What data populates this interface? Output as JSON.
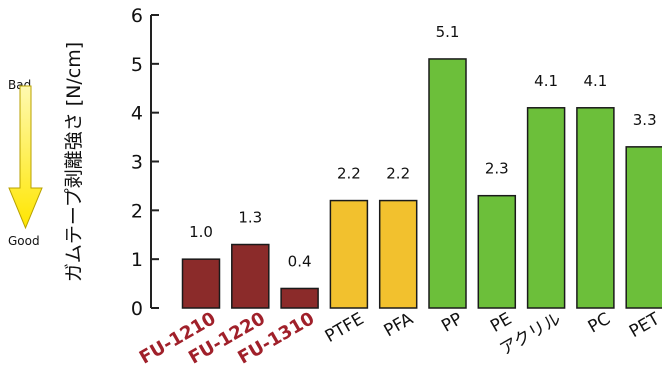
{
  "chart_data": {
    "type": "bar",
    "title": "",
    "xlabel": "",
    "ylabel": "ガムテープ剥離強さ [N/cm]",
    "ylim": [
      0,
      6
    ],
    "yticks": [
      "0",
      "1",
      "2",
      "3",
      "4",
      "5",
      "6"
    ],
    "grid": false,
    "categories": [
      "FU-1210",
      "FU-1220",
      "FU-1310",
      "PTFE",
      "PFA",
      "PP",
      "PE",
      "アクリル",
      "PC",
      "PET"
    ],
    "values": [
      1.0,
      1.3,
      0.4,
      2.2,
      2.2,
      5.1,
      2.3,
      4.1,
      4.1,
      3.3
    ],
    "value_labels": [
      "1.0",
      "1.3",
      "0.4",
      "2.2",
      "2.2",
      "5.1",
      "2.3",
      "4.1",
      "4.1",
      "3.3"
    ],
    "bar_colors": [
      "#8b2b2a",
      "#8b2b2a",
      "#8b2b2a",
      "#f2c12e",
      "#f2c12e",
      "#6cbf3a",
      "#6cbf3a",
      "#6cbf3a",
      "#6cbf3a",
      "#6cbf3a"
    ],
    "highlight_categories": [
      "FU-1210",
      "FU-1220",
      "FU-1310"
    ],
    "highlight_label_color": "#a0202a",
    "arrow": {
      "top_label": "Bad",
      "bottom_label": "Good",
      "color": "#ffe600"
    }
  }
}
